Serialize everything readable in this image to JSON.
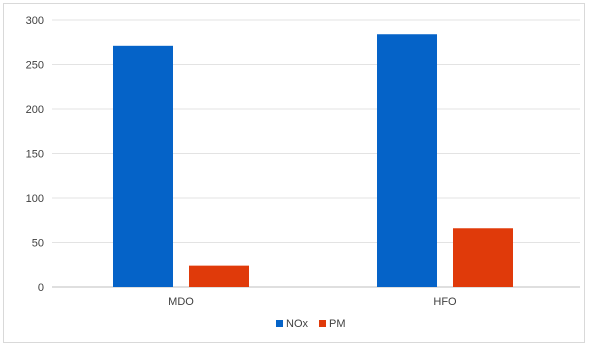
{
  "chart_data": {
    "type": "bar",
    "categories": [
      "MDO",
      "HFO"
    ],
    "series": [
      {
        "name": "NOx",
        "values": [
          271,
          284
        ],
        "color": "#0563c8"
      },
      {
        "name": "PM",
        "values": [
          24,
          66
        ],
        "color": "#e03a0a"
      }
    ],
    "ylim": [
      0,
      300
    ],
    "yticks": [
      0,
      50,
      100,
      150,
      200,
      250,
      300
    ],
    "grid": true,
    "legend_position": "bottom-center"
  }
}
